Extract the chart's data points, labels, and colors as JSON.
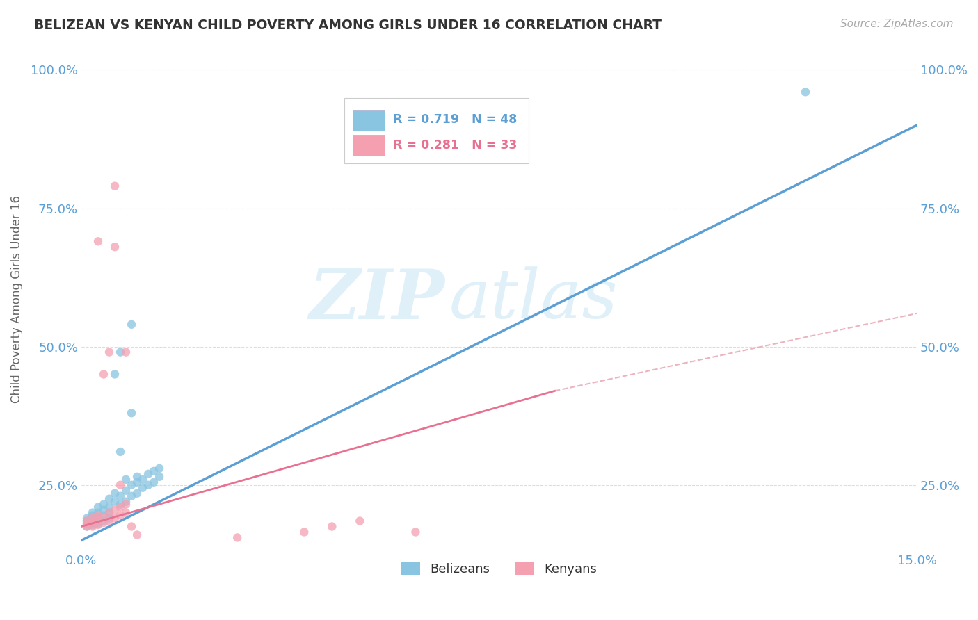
{
  "title": "BELIZEAN VS KENYAN CHILD POVERTY AMONG GIRLS UNDER 16 CORRELATION CHART",
  "source": "Source: ZipAtlas.com",
  "ylabel": "Child Poverty Among Girls Under 16",
  "xlim": [
    0.0,
    0.15
  ],
  "ylim": [
    0.13,
    1.04
  ],
  "xticks": [
    0.0,
    0.05,
    0.1,
    0.15
  ],
  "xticklabels": [
    "0.0%",
    "",
    "",
    "15.0%"
  ],
  "yticks": [
    0.25,
    0.5,
    0.75,
    1.0
  ],
  "yticklabels": [
    "25.0%",
    "50.0%",
    "75.0%",
    "100.0%"
  ],
  "blue_color": "#89c4e1",
  "pink_color": "#f4a0b0",
  "blue_line_color": "#5b9fd4",
  "pink_line_color": "#e87090",
  "pink_dash_color": "#e8a0b0",
  "blue_R": 0.719,
  "blue_N": 48,
  "pink_R": 0.281,
  "pink_N": 33,
  "watermark_zip": "ZIP",
  "watermark_atlas": "atlas",
  "tick_color": "#5b9fd4",
  "grid_color": "#dddddd",
  "title_color": "#333333",
  "source_color": "#aaaaaa",
  "ylabel_color": "#666666",
  "blue_scatter": [
    [
      0.001,
      0.175
    ],
    [
      0.001,
      0.18
    ],
    [
      0.001,
      0.185
    ],
    [
      0.001,
      0.19
    ],
    [
      0.002,
      0.178
    ],
    [
      0.002,
      0.182
    ],
    [
      0.002,
      0.188
    ],
    [
      0.002,
      0.195
    ],
    [
      0.002,
      0.2
    ],
    [
      0.003,
      0.18
    ],
    [
      0.003,
      0.183
    ],
    [
      0.003,
      0.192
    ],
    [
      0.003,
      0.2
    ],
    [
      0.003,
      0.21
    ],
    [
      0.004,
      0.185
    ],
    [
      0.004,
      0.195
    ],
    [
      0.004,
      0.205
    ],
    [
      0.004,
      0.215
    ],
    [
      0.005,
      0.19
    ],
    [
      0.005,
      0.2
    ],
    [
      0.005,
      0.21
    ],
    [
      0.005,
      0.225
    ],
    [
      0.006,
      0.22
    ],
    [
      0.006,
      0.235
    ],
    [
      0.006,
      0.45
    ],
    [
      0.007,
      0.215
    ],
    [
      0.007,
      0.23
    ],
    [
      0.007,
      0.31
    ],
    [
      0.007,
      0.49
    ],
    [
      0.008,
      0.22
    ],
    [
      0.008,
      0.24
    ],
    [
      0.008,
      0.26
    ],
    [
      0.009,
      0.23
    ],
    [
      0.009,
      0.25
    ],
    [
      0.009,
      0.38
    ],
    [
      0.009,
      0.54
    ],
    [
      0.01,
      0.235
    ],
    [
      0.01,
      0.255
    ],
    [
      0.01,
      0.265
    ],
    [
      0.011,
      0.245
    ],
    [
      0.011,
      0.26
    ],
    [
      0.012,
      0.25
    ],
    [
      0.012,
      0.27
    ],
    [
      0.013,
      0.255
    ],
    [
      0.013,
      0.275
    ],
    [
      0.014,
      0.265
    ],
    [
      0.13,
      0.96
    ],
    [
      0.014,
      0.28
    ]
  ],
  "pink_scatter": [
    [
      0.001,
      0.175
    ],
    [
      0.001,
      0.18
    ],
    [
      0.001,
      0.185
    ],
    [
      0.002,
      0.175
    ],
    [
      0.002,
      0.183
    ],
    [
      0.002,
      0.19
    ],
    [
      0.003,
      0.178
    ],
    [
      0.003,
      0.188
    ],
    [
      0.003,
      0.195
    ],
    [
      0.003,
      0.69
    ],
    [
      0.004,
      0.182
    ],
    [
      0.004,
      0.192
    ],
    [
      0.004,
      0.45
    ],
    [
      0.005,
      0.185
    ],
    [
      0.005,
      0.2
    ],
    [
      0.005,
      0.49
    ],
    [
      0.006,
      0.19
    ],
    [
      0.006,
      0.205
    ],
    [
      0.006,
      0.68
    ],
    [
      0.006,
      0.79
    ],
    [
      0.007,
      0.195
    ],
    [
      0.007,
      0.21
    ],
    [
      0.007,
      0.25
    ],
    [
      0.008,
      0.2
    ],
    [
      0.008,
      0.215
    ],
    [
      0.008,
      0.49
    ],
    [
      0.009,
      0.175
    ],
    [
      0.01,
      0.16
    ],
    [
      0.045,
      0.175
    ],
    [
      0.05,
      0.185
    ],
    [
      0.06,
      0.165
    ],
    [
      0.028,
      0.155
    ],
    [
      0.04,
      0.165
    ]
  ],
  "blue_reg": [
    0.0,
    0.15,
    0.17,
    1.0
  ],
  "pink_reg_solid": [
    0.0,
    0.085,
    0.175,
    0.42
  ],
  "pink_reg_dash": [
    0.085,
    0.15,
    0.42,
    0.56
  ]
}
